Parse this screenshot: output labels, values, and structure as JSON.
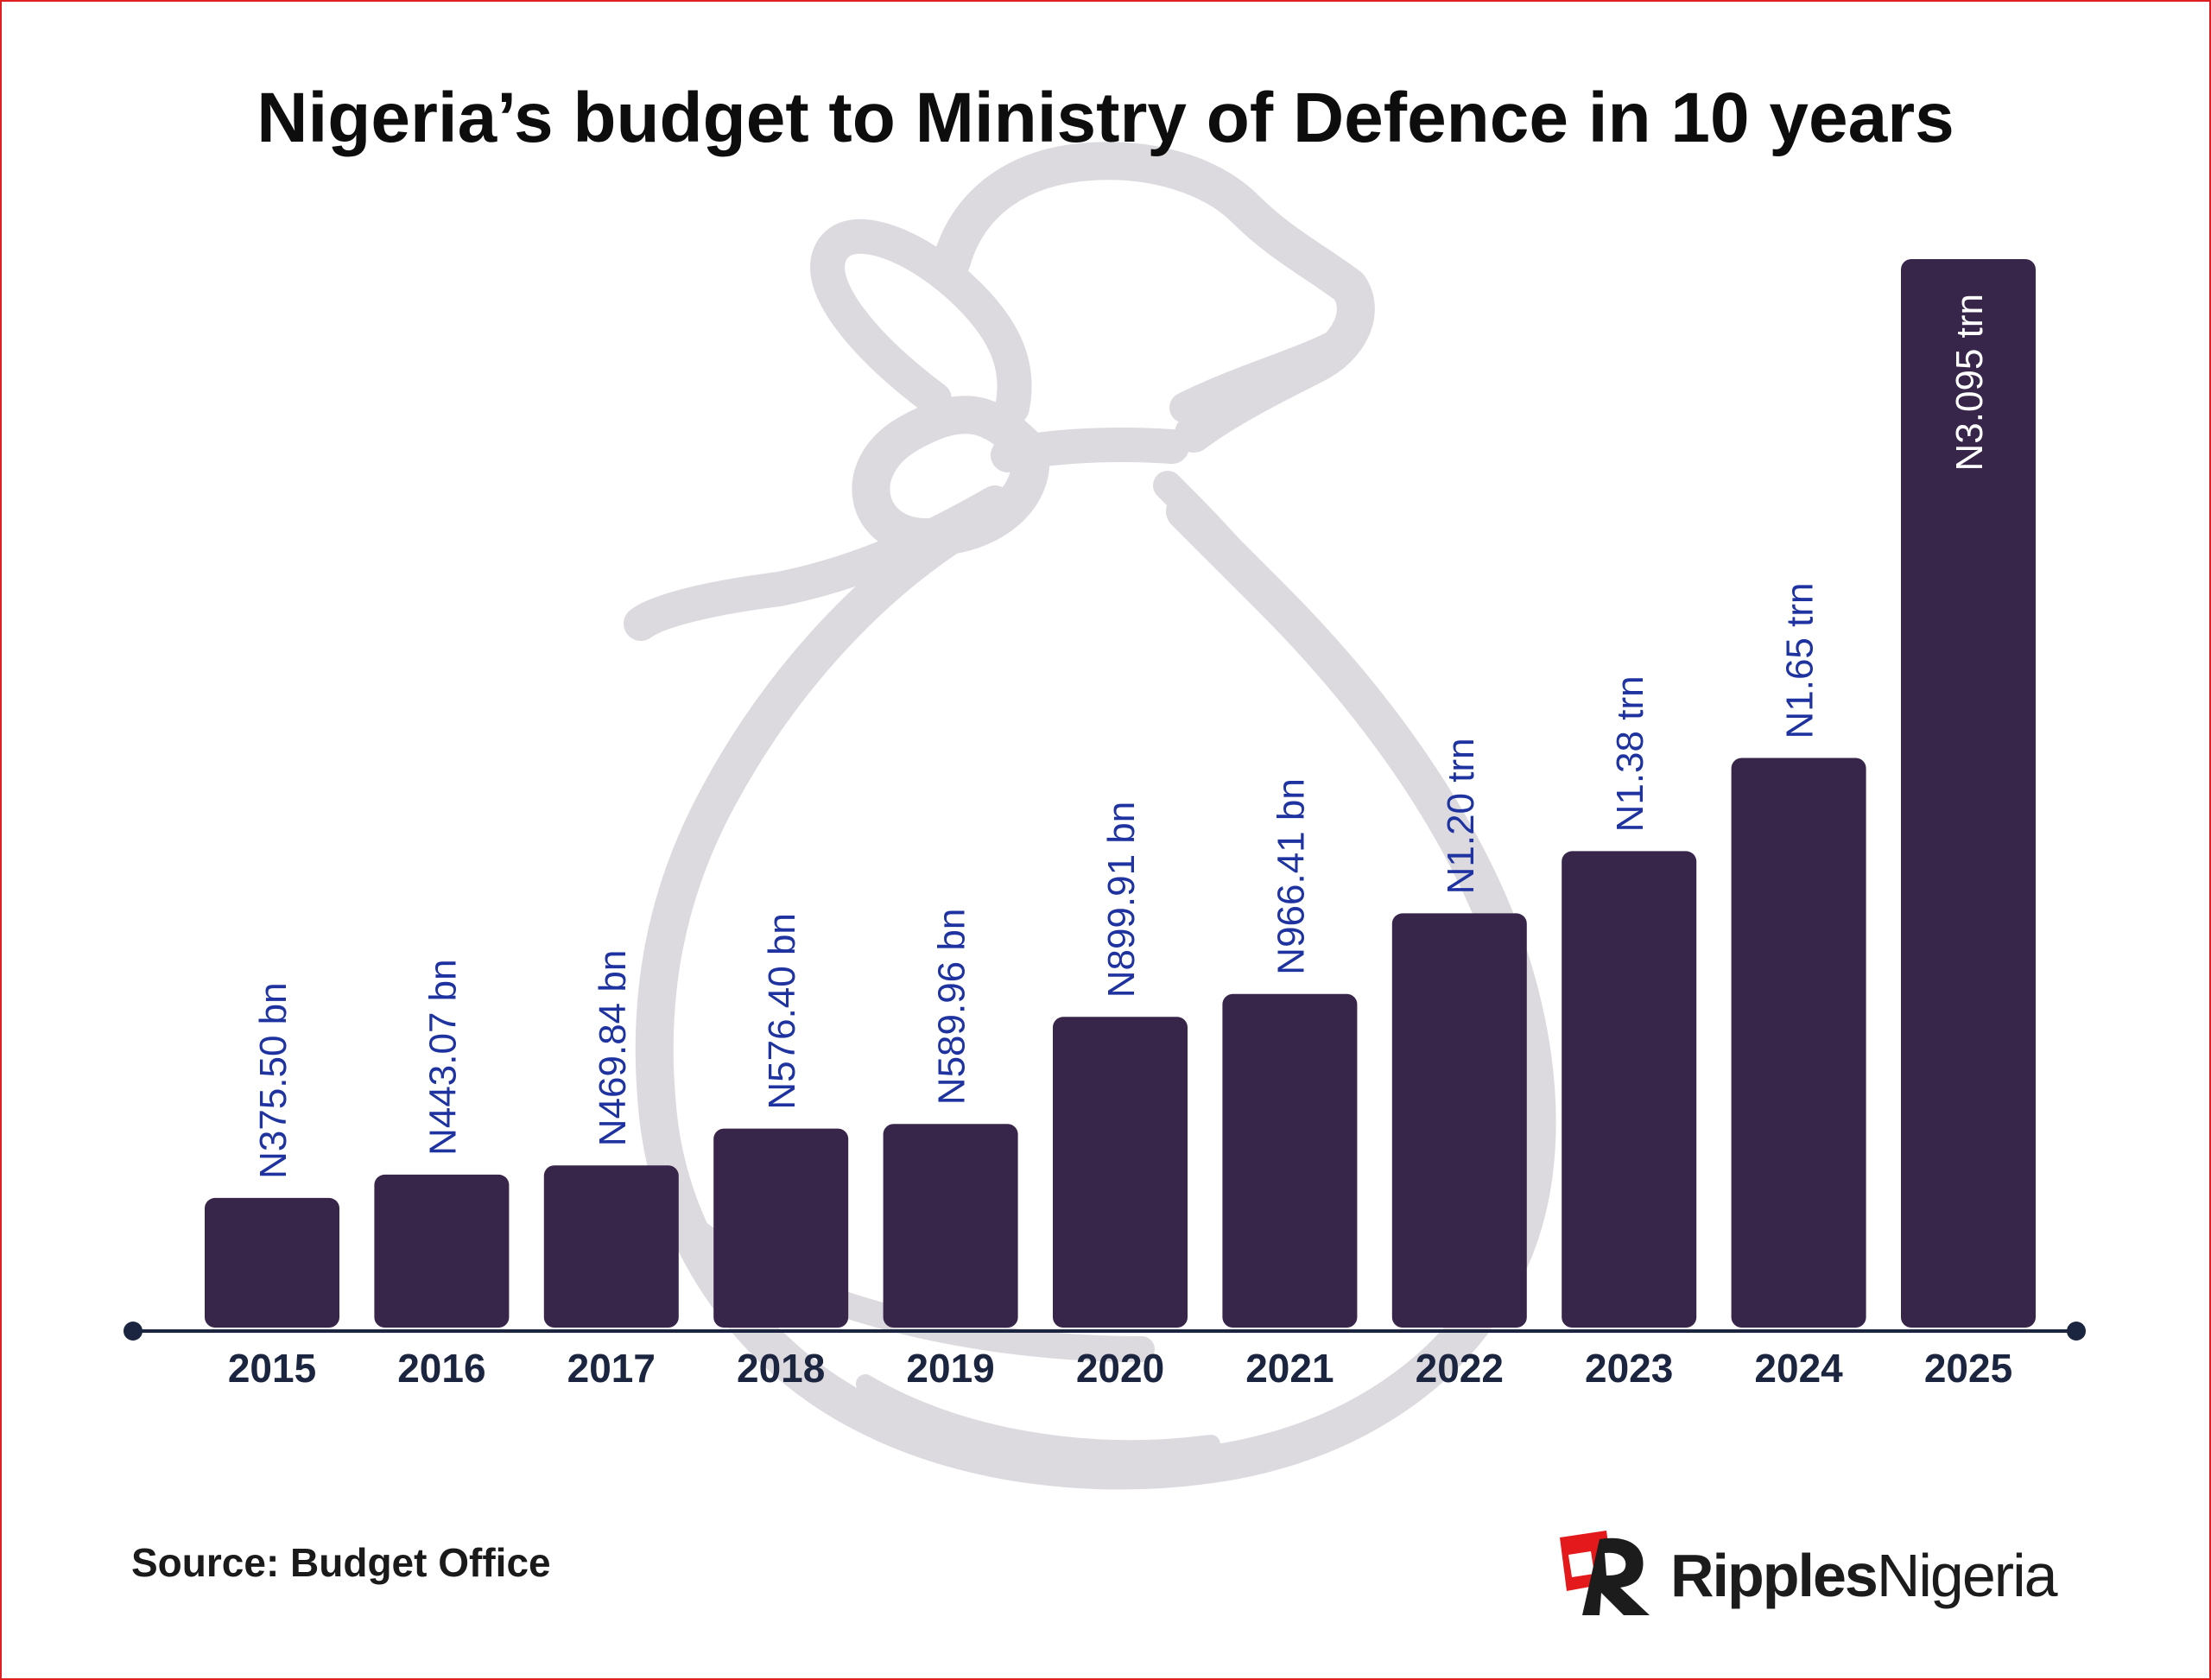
{
  "title": "Nigeria’s budget to Ministry of Defence in 10 years",
  "source": "Source: Budget Office",
  "brand": {
    "part1": "Ripples",
    "part2": "Nigeria"
  },
  "colors": {
    "bar": "#38264a",
    "value_label": "#1e33a0",
    "value_label_inside": "#ffffff",
    "axis": "#1c2540",
    "tick_label": "#1c2540",
    "watermark": "#dcdadf",
    "brand_red": "#e3191b"
  },
  "watermark_icon": "money-bag-icon",
  "chart_data": {
    "type": "bar",
    "categories": [
      "2015",
      "2016",
      "2017",
      "2018",
      "2019",
      "2020",
      "2021",
      "2022",
      "2023",
      "2024",
      "2025"
    ],
    "values": [
      375.5,
      443.07,
      469.84,
      576.4,
      589.96,
      899.91,
      966.41,
      1200,
      1380,
      1650,
      3095
    ],
    "unit": "billion naira",
    "data_labels": [
      "N375.50 bn",
      "N443.07 bn",
      "N469.84 bn",
      "N576.40 bn",
      "N589.96 bn",
      "N899.91 bn",
      "N966.41 bn",
      "N1.20 trn",
      "N1.38 trn",
      "N1.65 trn",
      "N3.095 trn"
    ],
    "label_inside_last": true,
    "ylim": [
      0,
      3095
    ],
    "grid": false,
    "legend": "none"
  }
}
